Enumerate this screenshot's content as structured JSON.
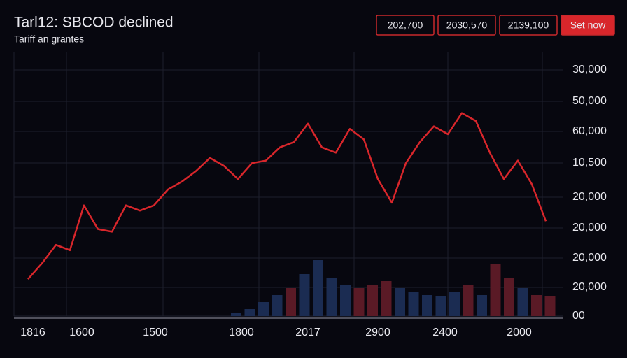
{
  "header": {
    "title": "Tarl12: SBCOD declined",
    "subtitle": "Tariff an grantes"
  },
  "buttons": [
    "202,700",
    "2030,570",
    "2139,100",
    "Set now"
  ],
  "axis": {
    "y_labels": [
      "30,000",
      "50,000",
      "60,000",
      "10,500",
      "20,000",
      "20,000",
      "20,000",
      "20,000",
      "00"
    ],
    "x_labels": [
      "1816",
      "1600",
      "1500",
      "1800",
      "2017",
      "2900",
      "2400",
      "2000"
    ]
  },
  "chart_data": {
    "type": "line",
    "color": "#d8262b",
    "ylim": [
      0,
      100
    ],
    "values": [
      14,
      20,
      27,
      25,
      42,
      33,
      32,
      42,
      40,
      42,
      48,
      51,
      55,
      60,
      57,
      52,
      58,
      59,
      64,
      66,
      73,
      64,
      62,
      71,
      67,
      52,
      43,
      58,
      66,
      72,
      69,
      77,
      74,
      62,
      52,
      59,
      50,
      36
    ],
    "volume": {
      "ylim": [
        0,
        100
      ],
      "values": [
        5,
        10,
        20,
        30,
        40,
        60,
        80,
        55,
        45,
        40,
        45,
        50,
        40,
        35,
        30,
        28,
        35,
        45,
        30,
        75,
        55,
        40,
        30,
        28
      ],
      "colors": [
        "#1b2c52",
        "#1b2c52",
        "#1b2c52",
        "#1b2c52",
        "#5a1a26",
        "#1b2c52",
        "#1b2c52",
        "#1b2c52",
        "#1b2c52",
        "#5a1a26",
        "#5a1a26",
        "#5a1a26",
        "#1b2c52",
        "#1b2c52",
        "#1b2c52",
        "#1b2c52",
        "#1b2c52",
        "#5a1a26",
        "#1b2c52",
        "#5a1a26",
        "#5a1a26",
        "#1b2c52",
        "#5a1a26",
        "#5a1a26"
      ]
    }
  }
}
